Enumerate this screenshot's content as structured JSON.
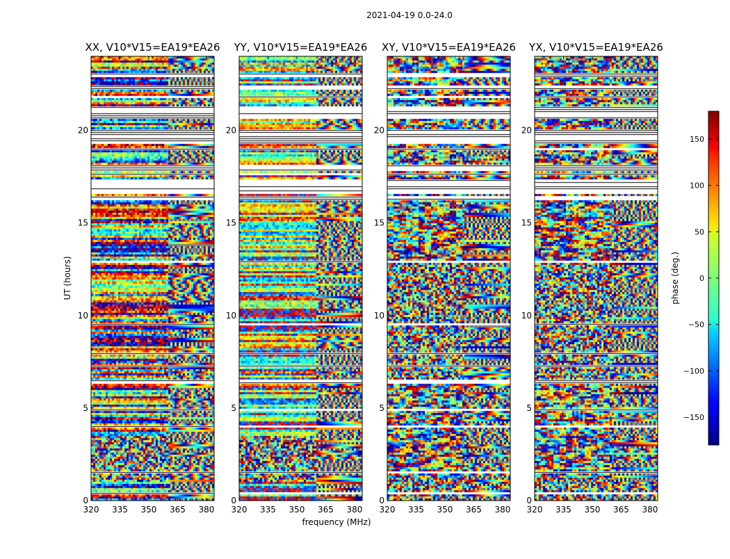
{
  "chart_data": {
    "type": "heatmap",
    "suptitle": "2021-04-19 0.0-24.0",
    "xlabel": "frequency (MHz)",
    "ylabel": "UT (hours)",
    "xlim": [
      320,
      384
    ],
    "ylim": [
      0,
      24
    ],
    "x_ticks": [
      320,
      335,
      350,
      365,
      380
    ],
    "y_ticks": [
      0,
      5,
      10,
      15,
      20
    ],
    "panels": [
      {
        "title": "XX, V10*V15=EA19*EA26",
        "correlation": "XX"
      },
      {
        "title": "YY, V10*V15=EA19*EA26",
        "correlation": "YY"
      },
      {
        "title": "XY, V10*V15=EA19*EA26",
        "correlation": "XY"
      },
      {
        "title": "YX, V10*V15=EA19*EA26",
        "correlation": "YX"
      }
    ],
    "colorbar": {
      "label": "phase (deg.)",
      "range": [
        -180,
        180
      ],
      "ticks": [
        150,
        100,
        50,
        0,
        -50,
        -100,
        -150
      ],
      "colormap": "jet"
    },
    "flagged_ut_ranges_hours": [
      [
        0.35,
        0.45
      ],
      [
        1.5,
        1.6
      ],
      [
        2.65,
        2.72
      ],
      [
        3.9,
        4.0
      ],
      [
        4.9,
        4.95
      ],
      [
        6.3,
        6.55
      ],
      [
        7.25,
        7.35
      ],
      [
        12.8,
        12.95
      ],
      [
        13.7,
        13.8
      ],
      [
        16.25,
        16.4
      ],
      [
        16.6,
        17.2
      ],
      [
        17.75,
        18.1
      ],
      [
        18.95,
        19.0
      ],
      [
        19.3,
        20.1
      ],
      [
        20.6,
        21.3
      ],
      [
        21.7,
        21.85
      ],
      [
        22.2,
        22.45
      ],
      [
        22.9,
        23.1
      ]
    ],
    "flagged_ut_thin_lines_hours": [
      [
        17.2,
        17.35
      ],
      [
        17.6,
        17.7
      ],
      [
        7.9,
        7.95
      ],
      [
        12.3,
        12.33
      ],
      [
        9.5,
        9.53
      ]
    ],
    "band_edge_mhz": 360
  }
}
